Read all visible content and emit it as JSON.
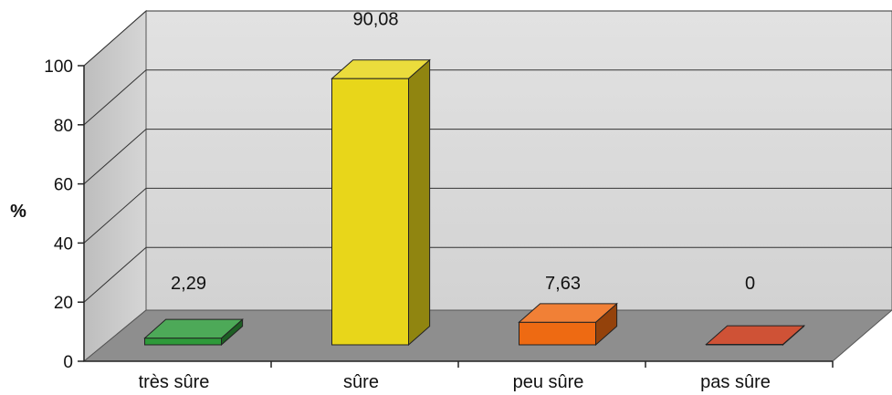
{
  "chart_data": {
    "type": "bar",
    "style": "3d",
    "categories": [
      "très sûre",
      "sûre",
      "peu sûre",
      "pas sûre"
    ],
    "values": [
      2.29,
      90.08,
      7.63,
      0
    ],
    "value_labels": [
      "2,29",
      "90,08",
      "7,63",
      "0"
    ],
    "colors": [
      "#2e9a3a",
      "#e8d61a",
      "#ee6a12",
      "#c63312"
    ],
    "ylabel": "%",
    "ylim": [
      0,
      100
    ],
    "yticks": [
      0,
      20,
      40,
      60,
      80,
      100
    ],
    "grid": true
  }
}
